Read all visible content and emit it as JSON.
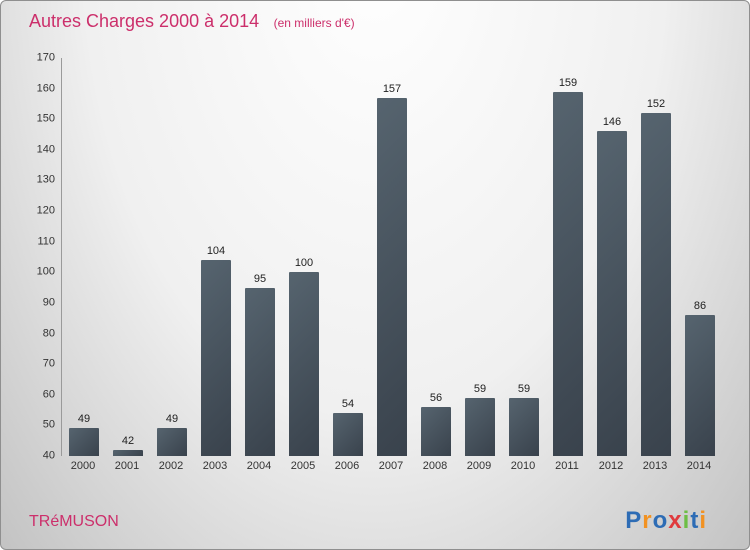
{
  "header": {
    "title": "Autres Charges 2000 à 2014",
    "subtitle": "(en milliers d'€)"
  },
  "footer": {
    "company": "TRéMUSON",
    "brand": {
      "name": "Proxiti",
      "letters": [
        {
          "ch": "P",
          "color": "#2d6cb5"
        },
        {
          "ch": "r",
          "color": "#f29222"
        },
        {
          "ch": "o",
          "color": "#2d6cb5"
        },
        {
          "ch": "x",
          "color": "#e03a3e"
        },
        {
          "ch": "i",
          "color": "#6dbe45"
        },
        {
          "ch": "t",
          "color": "#2d6cb5"
        },
        {
          "ch": "i",
          "color": "#f29222"
        }
      ]
    }
  },
  "colors": {
    "accent_pink": "#cc2f6b",
    "bar_gradient_light": "#56646f",
    "bar_gradient_dark": "#39424c",
    "tick_text": "#333333"
  },
  "chart_data": {
    "type": "bar",
    "title": "Autres Charges 2000 à 2014",
    "subtitle": "(en milliers d'€)",
    "categories": [
      "2000",
      "2001",
      "2002",
      "2003",
      "2004",
      "2005",
      "2006",
      "2007",
      "2008",
      "2009",
      "2010",
      "2011",
      "2012",
      "2013",
      "2014"
    ],
    "values": [
      49,
      42,
      49,
      104,
      95,
      100,
      54,
      157,
      56,
      59,
      59,
      159,
      146,
      152,
      86
    ],
    "xlabel": "",
    "ylabel": "",
    "ylim": [
      40,
      170
    ],
    "ytick_step": 10,
    "grid": false,
    "legend": "none",
    "value_labels": "above bars"
  }
}
